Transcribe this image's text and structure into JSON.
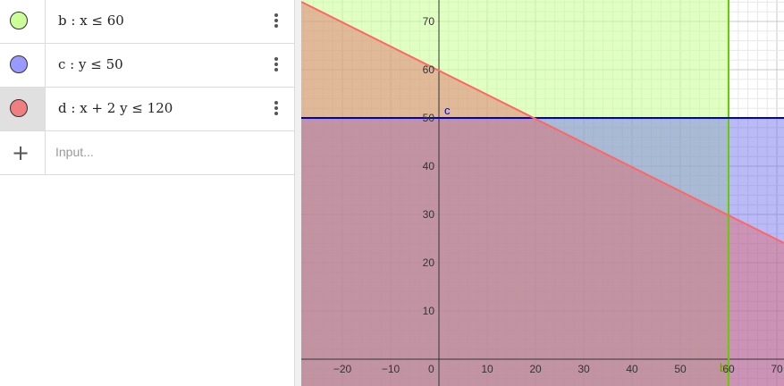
{
  "algebra": {
    "items": [
      {
        "label": "b",
        "expr": "b : x ≤ 60",
        "color": "#ccff99"
      },
      {
        "label": "c",
        "expr": "c : y ≤ 50",
        "color": "#9999ff"
      },
      {
        "label": "d",
        "expr": "d : x + 2 y ≤ 120",
        "color": "#f08080"
      }
    ],
    "input_placeholder": "Input..."
  },
  "graph": {
    "x_ticks": [
      "−20",
      "−10",
      "0",
      "10",
      "20",
      "30",
      "40",
      "50",
      "60",
      "70"
    ],
    "y_ticks": [
      "10",
      "20",
      "30",
      "40",
      "50",
      "60",
      "70"
    ],
    "label_b": "b",
    "label_c": "c",
    "colors": {
      "b": "#66cc00",
      "c": "#0000cc",
      "d": "#ff6666"
    }
  }
}
